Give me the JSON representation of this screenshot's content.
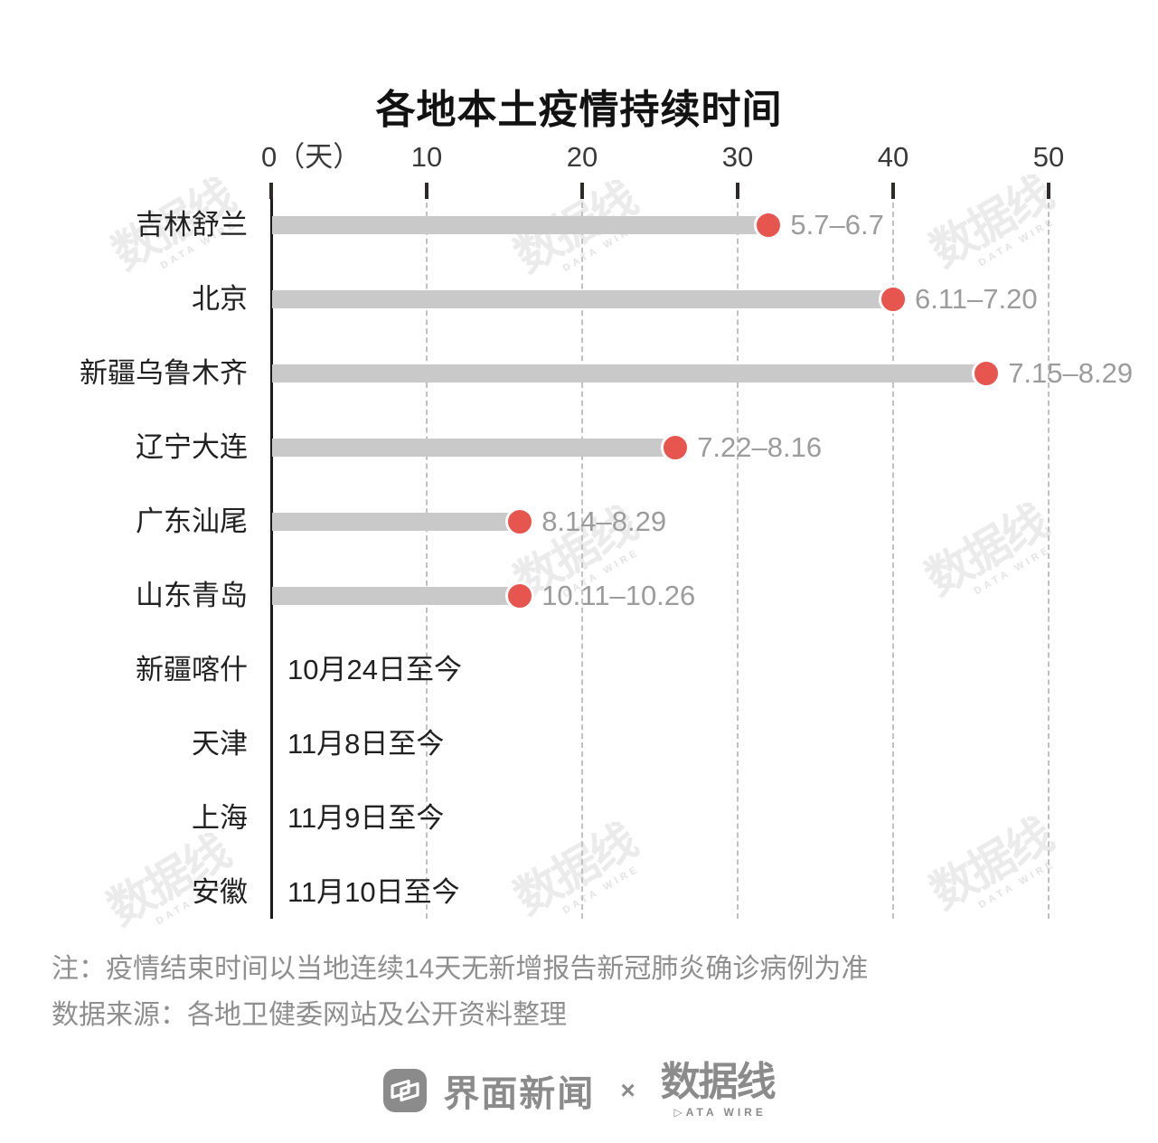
{
  "title": "各地本土疫情持续时间",
  "chart_data": {
    "type": "bar",
    "orientation": "horizontal",
    "title": "各地本土疫情持续时间",
    "x_unit": "天",
    "x_ticks": [
      0,
      10,
      20,
      30,
      40,
      50
    ],
    "x_tick_labels": [
      "0（天）",
      "10",
      "20",
      "30",
      "40",
      "50"
    ],
    "xlim": [
      0,
      50
    ],
    "grid": "vertical-dashed",
    "rows": [
      {
        "label": "吉林舒兰",
        "duration_days": 32,
        "date_range": "5.7–6.7"
      },
      {
        "label": "北京",
        "duration_days": 40,
        "date_range": "6.11–7.20"
      },
      {
        "label": "新疆乌鲁木齐",
        "duration_days": 46,
        "date_range": "7.15–8.29"
      },
      {
        "label": "辽宁大连",
        "duration_days": 26,
        "date_range": "7.22–8.16"
      },
      {
        "label": "广东汕尾",
        "duration_days": 16,
        "date_range": "8.14–8.29"
      },
      {
        "label": "山东青岛",
        "duration_days": 16,
        "date_range": "10.11–10.26"
      },
      {
        "label": "新疆喀什",
        "duration_days": null,
        "ongoing_text": "10月24日至今"
      },
      {
        "label": "天津",
        "duration_days": null,
        "ongoing_text": "11月8日至今"
      },
      {
        "label": "上海",
        "duration_days": null,
        "ongoing_text": "11月9日至今"
      },
      {
        "label": "安徽",
        "duration_days": null,
        "ongoing_text": "11月10日至今"
      }
    ],
    "colors": {
      "bar": "#c9c9c9",
      "dot": "#e7564e",
      "grid": "#c1c1c1",
      "axis": "#1c1c1c",
      "range_label": "#9c9c9c",
      "category_label": "#212121"
    }
  },
  "notes": {
    "note": "注：疫情结束时间以当地连续14天无新增报告新冠肺炎确诊病例为准",
    "source": "数据来源：各地卫健委网站及公开资料整理"
  },
  "footer": {
    "jiemian_label": "界面新闻",
    "separator": "×",
    "datawire_cn": "数据线",
    "datawire_en": "▷ATA WIRE"
  },
  "watermark": {
    "cn": "数据线",
    "en": "DATA WIRE"
  }
}
